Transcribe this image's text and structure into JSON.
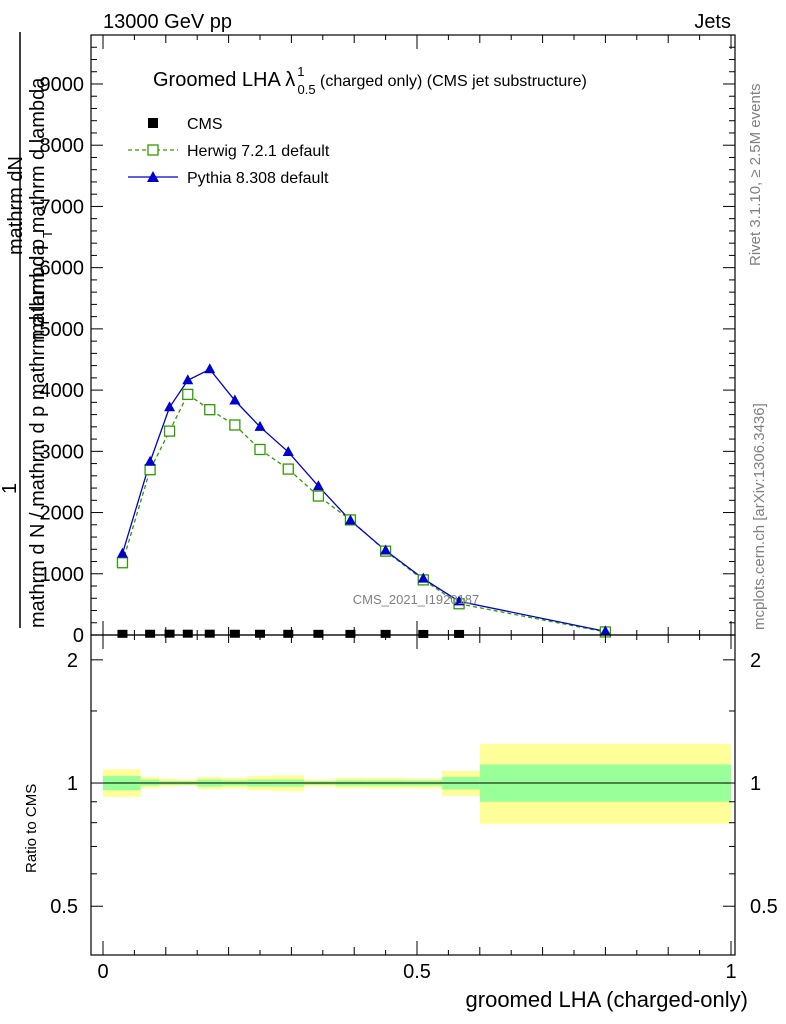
{
  "header": {
    "energy_label": "13000 GeV pp",
    "process_label": "Jets"
  },
  "side_labels": {
    "rivet": "Rivet 3.1.10, ≥ 2.5M events",
    "mcplots": "mcplots.cern.ch [arXiv:1306.3436]"
  },
  "watermark": "CMS_2021_I1920187",
  "colors": {
    "cms": "#000000",
    "herwig": "#339900",
    "pythia": "#0000cc",
    "band_inner": "#99ff99",
    "band_outer": "#ffff99"
  },
  "chart_data": [
    {
      "type": "line",
      "title": "Groomed LHA λ",
      "title_sup": "1",
      "title_sub": "0.5",
      "title_suffix": " (charged only) (CMS jet substructure)",
      "ylabel_numerator": "mathrm d²N",
      "ylabel_numerator_lines": [
        "mathrm d N",
        "mathrm d p_T mathrm d lambda"
      ],
      "ylabel_denominator": "mathrm d N / mathrm d p_T",
      "ylabel_one": "1",
      "ylabel_display_top": "mathrm dN",
      "ylabel_display_mid": "mathrm d p  mathrm d lambda",
      "ylabel_display_sub": "T",
      "ylabel_display_bottom": "mathrm d N / mathrm d p  mathrm d lambda",
      "ylim": [
        0,
        9800
      ],
      "y_ticks": [
        0,
        1000,
        2000,
        3000,
        4000,
        5000,
        6000,
        7000,
        8000,
        9000
      ],
      "y_tick_labels": [
        "0",
        "1000",
        "2000",
        "3000",
        "4000",
        "5000",
        "6000",
        "7000",
        "8000",
        "9000"
      ],
      "xlim": [
        0,
        1
      ],
      "legend_position": "top-left",
      "series": [
        {
          "name": "CMS",
          "marker": "square",
          "x": [
            0.031,
            0.075,
            0.106,
            0.135,
            0.17,
            0.21,
            0.25,
            0.295,
            0.343,
            0.394,
            0.45,
            0.51,
            0.567
          ],
          "values": [
            3,
            4,
            5,
            5,
            5,
            4,
            4,
            3,
            3,
            2,
            2,
            1,
            1
          ]
        },
        {
          "name": "Herwig 7.2.1 default",
          "marker": "open-square",
          "style": "dashed",
          "x": [
            0.031,
            0.075,
            0.106,
            0.135,
            0.17,
            0.21,
            0.25,
            0.295,
            0.343,
            0.394,
            0.45,
            0.51,
            0.567,
            0.8
          ],
          "values": [
            1180,
            2700,
            3330,
            3930,
            3680,
            3430,
            3030,
            2710,
            2270,
            1880,
            1370,
            900,
            510,
            50
          ]
        },
        {
          "name": "Pythia 8.308 default",
          "marker": "triangle",
          "style": "solid",
          "x": [
            0.031,
            0.075,
            0.106,
            0.135,
            0.17,
            0.21,
            0.25,
            0.295,
            0.343,
            0.394,
            0.45,
            0.51,
            0.567,
            0.8
          ],
          "values": [
            1330,
            2830,
            3720,
            4160,
            4340,
            3830,
            3400,
            2990,
            2430,
            1870,
            1380,
            920,
            550,
            60
          ]
        }
      ]
    },
    {
      "type": "area",
      "ylabel": "Ratio to CMS",
      "xlabel": "groomed LHA (charged-only)",
      "xlim": [
        0,
        1
      ],
      "ylim": [
        0.38,
        2.3
      ],
      "log_y": true,
      "x_ticks": [
        0,
        0.5,
        1
      ],
      "x_tick_labels": [
        "0",
        "0.5",
        "1"
      ],
      "y_ticks": [
        0.5,
        1,
        2
      ],
      "y_tick_labels": [
        "0.5",
        "1",
        "2"
      ],
      "reference_line": 1,
      "bins": [
        {
          "x0": 0.0,
          "x1": 0.06,
          "inner": [
            0.96,
            1.04
          ],
          "outer": [
            0.925,
            1.08
          ]
        },
        {
          "x0": 0.06,
          "x1": 0.09,
          "inner": [
            0.985,
            1.02
          ],
          "outer": [
            0.97,
            1.035
          ]
        },
        {
          "x0": 0.09,
          "x1": 0.12,
          "inner": [
            0.99,
            1.01
          ],
          "outer": [
            0.98,
            1.025
          ]
        },
        {
          "x0": 0.12,
          "x1": 0.15,
          "inner": [
            0.99,
            1.01
          ],
          "outer": [
            0.985,
            1.02
          ]
        },
        {
          "x0": 0.15,
          "x1": 0.19,
          "inner": [
            0.98,
            1.02
          ],
          "outer": [
            0.965,
            1.035
          ]
        },
        {
          "x0": 0.19,
          "x1": 0.23,
          "inner": [
            0.985,
            1.015
          ],
          "outer": [
            0.97,
            1.03
          ]
        },
        {
          "x0": 0.23,
          "x1": 0.27,
          "inner": [
            0.98,
            1.02
          ],
          "outer": [
            0.96,
            1.04
          ]
        },
        {
          "x0": 0.27,
          "x1": 0.32,
          "inner": [
            0.98,
            1.02
          ],
          "outer": [
            0.955,
            1.045
          ]
        },
        {
          "x0": 0.32,
          "x1": 0.37,
          "inner": [
            0.99,
            1.01
          ],
          "outer": [
            0.98,
            1.02
          ]
        },
        {
          "x0": 0.37,
          "x1": 0.42,
          "inner": [
            0.985,
            1.015
          ],
          "outer": [
            0.97,
            1.03
          ]
        },
        {
          "x0": 0.42,
          "x1": 0.48,
          "inner": [
            0.985,
            1.015
          ],
          "outer": [
            0.97,
            1.03
          ]
        },
        {
          "x0": 0.48,
          "x1": 0.54,
          "inner": [
            0.985,
            1.015
          ],
          "outer": [
            0.97,
            1.025
          ]
        },
        {
          "x0": 0.54,
          "x1": 0.6,
          "inner": [
            0.965,
            1.035
          ],
          "outer": [
            0.93,
            1.07
          ]
        },
        {
          "x0": 0.6,
          "x1": 1.0,
          "inner": [
            0.9,
            1.11
          ],
          "outer": [
            0.795,
            1.245
          ]
        }
      ]
    }
  ]
}
